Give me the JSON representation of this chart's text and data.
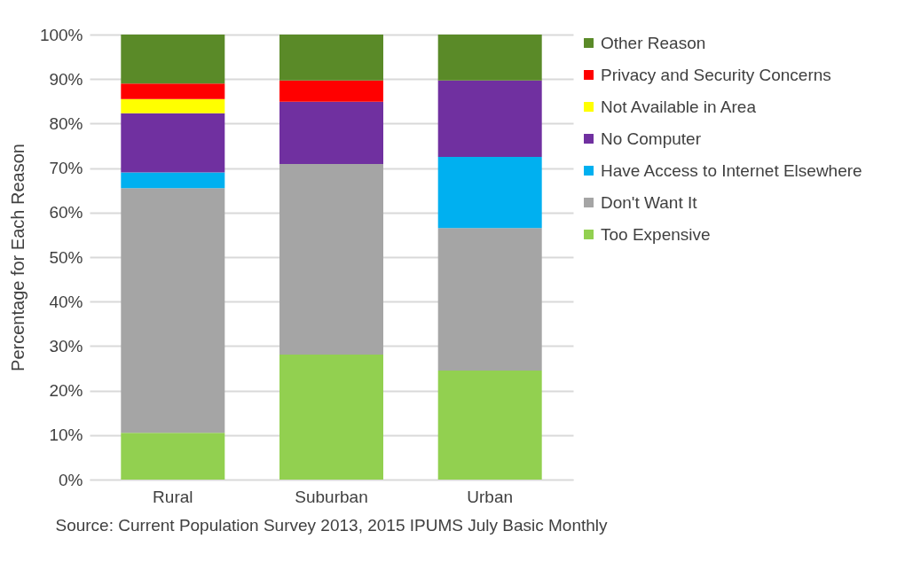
{
  "chart_data": {
    "type": "bar",
    "stacked": true,
    "ylabel": "Percentage for Each Reason",
    "categories": [
      "Rural",
      "Suburban",
      "Urban"
    ],
    "series": [
      {
        "name": "Too Expensive",
        "color": "#92d050",
        "values": [
          10.5,
          28.1,
          24.5
        ]
      },
      {
        "name": "Don't Want It",
        "color": "#a5a5a5",
        "values": [
          55,
          42.8,
          32
        ]
      },
      {
        "name": "Have Access to Internet Elsewhere",
        "color": "#00b0f0",
        "values": [
          3.5,
          0,
          16
        ]
      },
      {
        "name": "No Computer",
        "color": "#7030a0",
        "values": [
          13.3,
          14,
          17.2
        ]
      },
      {
        "name": "Not Available in Area",
        "color": "#ffff00",
        "values": [
          3.2,
          0,
          0
        ]
      },
      {
        "name": "Privacy and Security Concerns",
        "color": "#ff0000",
        "values": [
          3.5,
          4.8,
          0
        ]
      },
      {
        "name": "Other Reason",
        "color": "#5a8a28",
        "values": [
          11,
          10.3,
          10.3
        ]
      }
    ],
    "ylim": [
      0,
      100
    ],
    "yticks": [
      {
        "value": 0,
        "label": "0%"
      },
      {
        "value": 10,
        "label": "10%"
      },
      {
        "value": 20,
        "label": "20%"
      },
      {
        "value": 30,
        "label": "30%"
      },
      {
        "value": 40,
        "label": "40%"
      },
      {
        "value": 50,
        "label": "50%"
      },
      {
        "value": 60,
        "label": "60%"
      },
      {
        "value": 70,
        "label": "70%"
      },
      {
        "value": 80,
        "label": "80%"
      },
      {
        "value": 90,
        "label": "90%"
      },
      {
        "value": 100,
        "label": "100%"
      }
    ],
    "grid": "y",
    "legend": "right",
    "annotations": [
      "Source: Current Population Survey 2013, 2015 IPUMS July Basic Monthly"
    ]
  }
}
